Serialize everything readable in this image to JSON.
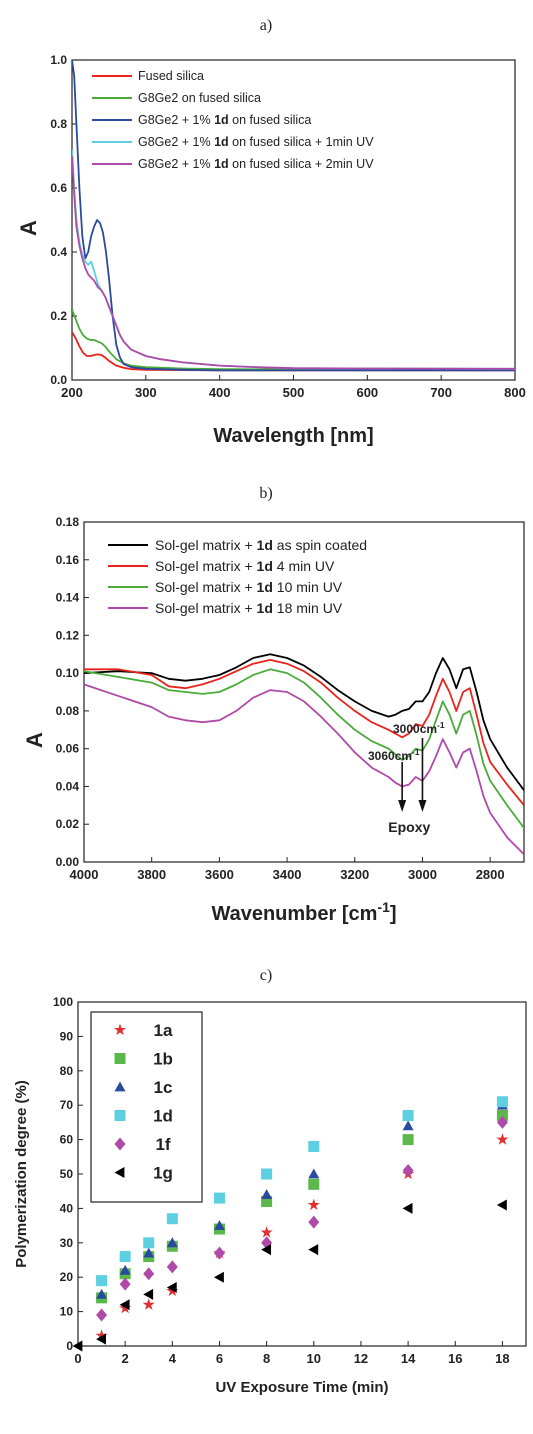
{
  "charts": [
    {
      "panel": "a)",
      "type": "line",
      "xlabel": "Wavelength [nm]",
      "ylabel": "A",
      "xlim": [
        200,
        800
      ],
      "ylim": [
        0.0,
        1.0
      ],
      "xticks": [
        200,
        300,
        400,
        500,
        600,
        700,
        800
      ],
      "yticks": [
        0.0,
        0.2,
        0.4,
        0.6,
        0.8,
        1.0
      ],
      "ytick_labels": [
        "0.0",
        "0.2",
        "0.4",
        "0.6",
        "0.8",
        "1.0"
      ],
      "legend": "top-right",
      "series": [
        {
          "label_parts": [
            "Fused silica"
          ],
          "color": "#e8231b",
          "x": [
            200,
            205,
            210,
            215,
            220,
            225,
            230,
            235,
            240,
            245,
            250,
            260,
            270,
            280,
            300,
            350,
            400,
            500,
            600,
            800
          ],
          "y": [
            0.15,
            0.13,
            0.105,
            0.085,
            0.075,
            0.075,
            0.078,
            0.08,
            0.078,
            0.07,
            0.06,
            0.045,
            0.038,
            0.034,
            0.032,
            0.031,
            0.03,
            0.03,
            0.03,
            0.03
          ]
        },
        {
          "label_parts": [
            "G8Ge2 on fused silica"
          ],
          "color": "#4aaa3a",
          "x": [
            200,
            205,
            210,
            215,
            220,
            225,
            230,
            235,
            240,
            245,
            250,
            260,
            270,
            280,
            300,
            350,
            400,
            500,
            600,
            800
          ],
          "y": [
            0.22,
            0.19,
            0.16,
            0.14,
            0.13,
            0.125,
            0.125,
            0.12,
            0.115,
            0.105,
            0.09,
            0.065,
            0.052,
            0.045,
            0.04,
            0.036,
            0.034,
            0.033,
            0.033,
            0.033
          ]
        },
        {
          "label_parts": [
            "G8Ge2 + 1% ",
            "1d",
            " on fused silica"
          ],
          "color": "#2a4aa0",
          "x": [
            200,
            203,
            206,
            210,
            214,
            218,
            222,
            226,
            230,
            234,
            238,
            242,
            246,
            250,
            255,
            260,
            265,
            270,
            280,
            300,
            350,
            400,
            500,
            600,
            800
          ],
          "y": [
            1.0,
            0.95,
            0.8,
            0.6,
            0.45,
            0.38,
            0.4,
            0.45,
            0.48,
            0.5,
            0.49,
            0.46,
            0.4,
            0.32,
            0.2,
            0.11,
            0.07,
            0.05,
            0.04,
            0.035,
            0.032,
            0.03,
            0.03,
            0.03,
            0.03
          ]
        },
        {
          "label_parts": [
            "G8Ge2 + 1% ",
            "1d",
            " on fused silica + 1min UV"
          ],
          "color": "#5ccfe0",
          "x": [
            200,
            203,
            206,
            210,
            214,
            218,
            222,
            226,
            230,
            235,
            240,
            245,
            250,
            255,
            260,
            265,
            270,
            280,
            290,
            300,
            320,
            350,
            400,
            450,
            500,
            600,
            800
          ],
          "y": [
            0.72,
            0.6,
            0.5,
            0.43,
            0.39,
            0.37,
            0.36,
            0.37,
            0.34,
            0.3,
            0.28,
            0.26,
            0.23,
            0.2,
            0.17,
            0.14,
            0.12,
            0.095,
            0.085,
            0.075,
            0.065,
            0.055,
            0.045,
            0.04,
            0.037,
            0.036,
            0.035
          ]
        },
        {
          "label_parts": [
            "G8Ge2 + 1% ",
            "1d",
            " on fused silica + 2min UV"
          ],
          "color": "#b04aa8",
          "x": [
            200,
            203,
            206,
            210,
            214,
            218,
            222,
            226,
            230,
            235,
            240,
            245,
            250,
            255,
            260,
            265,
            270,
            280,
            290,
            300,
            320,
            350,
            400,
            450,
            500,
            600,
            800
          ],
          "y": [
            0.7,
            0.58,
            0.48,
            0.42,
            0.38,
            0.35,
            0.33,
            0.32,
            0.31,
            0.29,
            0.28,
            0.26,
            0.23,
            0.2,
            0.17,
            0.14,
            0.12,
            0.095,
            0.085,
            0.075,
            0.065,
            0.055,
            0.045,
            0.04,
            0.037,
            0.036,
            0.035
          ]
        }
      ]
    },
    {
      "panel": "b)",
      "type": "line",
      "xlabel_parts": [
        "Wavenumber [cm",
        "-1",
        "]"
      ],
      "ylabel": "A",
      "xlim": [
        4000,
        2700
      ],
      "ylim": [
        0.0,
        0.18
      ],
      "xticks": [
        4000,
        3800,
        3600,
        3400,
        3200,
        3000,
        2800
      ],
      "yticks": [
        0.0,
        0.02,
        0.04,
        0.06,
        0.08,
        0.1,
        0.12,
        0.14,
        0.16,
        0.18
      ],
      "ytick_labels": [
        "0.00",
        "0.02",
        "0.04",
        "0.06",
        "0.08",
        "0.10",
        "0.12",
        "0.14",
        "0.16",
        "0.18"
      ],
      "legend": "top-center",
      "annotations": [
        {
          "text_parts": [
            "3060cm",
            "-1"
          ],
          "x": 3060
        },
        {
          "text_parts": [
            "3000cm",
            "-1"
          ],
          "x": 3000
        },
        {
          "text": "Epoxy",
          "x": 3030
        }
      ],
      "series": [
        {
          "label_parts": [
            "Sol-gel matrix + ",
            "1d",
            " as spin coated"
          ],
          "color": "#000000",
          "x": [
            4000,
            3900,
            3800,
            3750,
            3700,
            3650,
            3600,
            3550,
            3500,
            3450,
            3400,
            3350,
            3300,
            3250,
            3200,
            3150,
            3100,
            3080,
            3060,
            3040,
            3020,
            3000,
            2980,
            2960,
            2940,
            2920,
            2900,
            2880,
            2860,
            2840,
            2820,
            2800,
            2750,
            2700
          ],
          "y": [
            0.1,
            0.101,
            0.1,
            0.097,
            0.096,
            0.097,
            0.099,
            0.103,
            0.108,
            0.11,
            0.108,
            0.104,
            0.098,
            0.091,
            0.085,
            0.08,
            0.077,
            0.078,
            0.08,
            0.081,
            0.085,
            0.085,
            0.09,
            0.1,
            0.108,
            0.102,
            0.092,
            0.102,
            0.103,
            0.09,
            0.075,
            0.065,
            0.05,
            0.038
          ]
        },
        {
          "label_parts": [
            "Sol-gel matrix + ",
            "1d",
            " 4 min UV"
          ],
          "color": "#e8231b",
          "x": [
            4000,
            3900,
            3800,
            3750,
            3700,
            3650,
            3600,
            3550,
            3500,
            3450,
            3400,
            3350,
            3300,
            3250,
            3200,
            3150,
            3100,
            3080,
            3060,
            3040,
            3020,
            3000,
            2980,
            2960,
            2940,
            2920,
            2900,
            2880,
            2860,
            2840,
            2820,
            2800,
            2750,
            2700
          ],
          "y": [
            0.102,
            0.102,
            0.099,
            0.093,
            0.092,
            0.094,
            0.097,
            0.101,
            0.105,
            0.107,
            0.105,
            0.101,
            0.095,
            0.087,
            0.08,
            0.074,
            0.07,
            0.068,
            0.066,
            0.068,
            0.073,
            0.072,
            0.078,
            0.088,
            0.097,
            0.09,
            0.08,
            0.09,
            0.092,
            0.078,
            0.063,
            0.053,
            0.041,
            0.03
          ]
        },
        {
          "label_parts": [
            "Sol-gel matrix + ",
            "1d",
            " 10 min UV"
          ],
          "color": "#4aaa3a",
          "x": [
            4000,
            3900,
            3800,
            3750,
            3700,
            3650,
            3600,
            3550,
            3500,
            3450,
            3400,
            3350,
            3300,
            3250,
            3200,
            3150,
            3100,
            3080,
            3060,
            3040,
            3020,
            3000,
            2980,
            2960,
            2940,
            2920,
            2900,
            2880,
            2860,
            2840,
            2820,
            2800,
            2750,
            2700
          ],
          "y": [
            0.101,
            0.098,
            0.095,
            0.091,
            0.09,
            0.089,
            0.09,
            0.094,
            0.099,
            0.102,
            0.1,
            0.095,
            0.087,
            0.078,
            0.07,
            0.064,
            0.06,
            0.057,
            0.054,
            0.056,
            0.06,
            0.059,
            0.065,
            0.075,
            0.085,
            0.078,
            0.068,
            0.078,
            0.08,
            0.067,
            0.052,
            0.043,
            0.03,
            0.018
          ]
        },
        {
          "label_parts": [
            "Sol-gel matrix + ",
            "1d",
            " 18 min UV"
          ],
          "color": "#b04aa8",
          "x": [
            4000,
            3900,
            3800,
            3750,
            3700,
            3650,
            3600,
            3550,
            3500,
            3450,
            3400,
            3350,
            3300,
            3250,
            3200,
            3150,
            3100,
            3080,
            3060,
            3040,
            3020,
            3000,
            2980,
            2960,
            2940,
            2920,
            2900,
            2880,
            2860,
            2840,
            2820,
            2800,
            2750,
            2700
          ],
          "y": [
            0.094,
            0.088,
            0.082,
            0.077,
            0.075,
            0.074,
            0.075,
            0.08,
            0.087,
            0.091,
            0.09,
            0.085,
            0.077,
            0.068,
            0.058,
            0.05,
            0.045,
            0.042,
            0.04,
            0.041,
            0.045,
            0.043,
            0.048,
            0.056,
            0.065,
            0.058,
            0.05,
            0.058,
            0.06,
            0.048,
            0.035,
            0.026,
            0.013,
            0.004
          ]
        }
      ]
    },
    {
      "panel": "c)",
      "type": "scatter",
      "xlabel": "UV Exposure Time (min)",
      "ylabel": "Polymerization degree (%)",
      "xlim": [
        0,
        19
      ],
      "ylim": [
        0,
        100
      ],
      "xticks": [
        0,
        2,
        4,
        6,
        8,
        10,
        12,
        14,
        16,
        18
      ],
      "yticks": [
        0,
        10,
        20,
        30,
        40,
        50,
        60,
        70,
        80,
        90,
        100
      ],
      "ytick_labels": [
        "0",
        "10",
        "20",
        "30",
        "40",
        "50",
        "60",
        "70",
        "80",
        "90",
        "100"
      ],
      "legend": "top-left",
      "series": [
        {
          "name": "1a",
          "marker": "star",
          "color": "#e03030",
          "x": [
            1,
            2,
            3,
            4,
            6,
            8,
            10,
            14,
            18
          ],
          "y": [
            3,
            11,
            12,
            16,
            27,
            33,
            41,
            50,
            60
          ]
        },
        {
          "name": "1b",
          "marker": "square",
          "color": "#5cb84a",
          "x": [
            1,
            2,
            3,
            4,
            6,
            8,
            10,
            14,
            18
          ],
          "y": [
            14,
            21,
            26,
            29,
            34,
            42,
            47,
            60,
            67
          ]
        },
        {
          "name": "1c",
          "marker": "triangle-up",
          "color": "#2a4aa0",
          "x": [
            1,
            2,
            3,
            4,
            6,
            8,
            10,
            14,
            18
          ],
          "y": [
            15,
            22,
            27,
            30,
            35,
            44,
            50,
            64,
            70
          ]
        },
        {
          "name": "1d",
          "marker": "square",
          "color": "#5ccfe0",
          "x": [
            1,
            2,
            3,
            4,
            6,
            8,
            10,
            14,
            18
          ],
          "y": [
            19,
            26,
            30,
            37,
            43,
            50,
            58,
            67,
            71
          ]
        },
        {
          "name": "1f",
          "marker": "diamond",
          "color": "#b04aa8",
          "x": [
            1,
            2,
            3,
            4,
            6,
            8,
            10,
            14,
            18
          ],
          "y": [
            9,
            18,
            21,
            23,
            27,
            30,
            36,
            51,
            65
          ]
        },
        {
          "name": "1g",
          "marker": "triangle-left",
          "color": "#000000",
          "x": [
            0,
            1,
            2,
            3,
            4,
            6,
            8,
            10,
            14,
            18
          ],
          "y": [
            0,
            2,
            12,
            15,
            17,
            20,
            28,
            28,
            40,
            41
          ]
        }
      ]
    }
  ]
}
